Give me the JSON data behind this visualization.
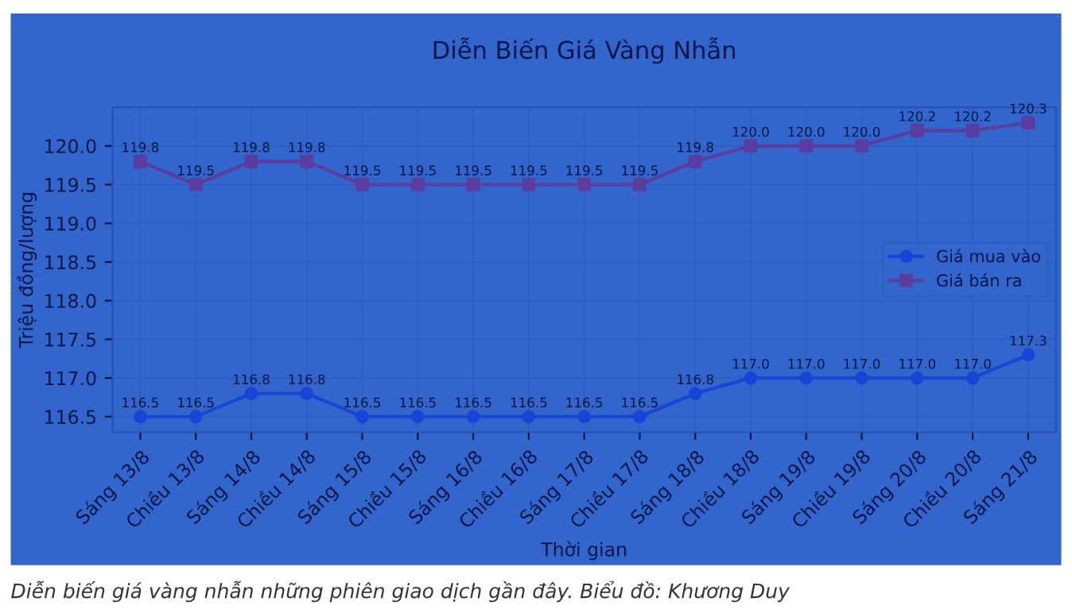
{
  "chart_data": {
    "type": "line",
    "title": "Diễn Biến Giá Vàng Nhẫn",
    "xlabel": "Thời gian",
    "ylabel": "Triệu đồng/lượng",
    "categories": [
      "Sáng 13/8",
      "Chiều 13/8",
      "Sáng 14/8",
      "Chiều 14/8",
      "Sáng 15/8",
      "Chiều 15/8",
      "Sáng 16/8",
      "Chiều 16/8",
      "Sáng 17/8",
      "Chiều 17/8",
      "Sáng 18/8",
      "Chiều 18/8",
      "Sáng 19/8",
      "Chiều 19/8",
      "Sáng 20/8",
      "Chiều 20/8",
      "Sáng 21/8"
    ],
    "series": [
      {
        "name": "Giá mua vào",
        "color": "#1a44d6",
        "marker": "circle",
        "values": [
          116.5,
          116.5,
          116.8,
          116.8,
          116.5,
          116.5,
          116.5,
          116.5,
          116.5,
          116.5,
          116.8,
          117.0,
          117.0,
          117.0,
          117.0,
          117.0,
          117.3
        ],
        "value_labels": [
          "116.5",
          "116.5",
          "116.8",
          "116.8",
          "116.5",
          "116.5",
          "116.5",
          "116.5",
          "116.5",
          "116.5",
          "116.8",
          "117.0",
          "117.0",
          "117.0",
          "117.0",
          "117.0",
          "117.3"
        ]
      },
      {
        "name": "Giá bán ra",
        "color": "#5a3d9e",
        "marker": "square",
        "values": [
          119.8,
          119.5,
          119.8,
          119.8,
          119.5,
          119.5,
          119.5,
          119.5,
          119.5,
          119.5,
          119.8,
          120.0,
          120.0,
          120.0,
          120.2,
          120.2,
          120.3
        ],
        "value_labels": [
          "119.8",
          "119.5",
          "119.8",
          "119.8",
          "119.5",
          "119.5",
          "119.5",
          "119.5",
          "119.5",
          "119.5",
          "119.8",
          "120.0",
          "120.0",
          "120.0",
          "120.2",
          "120.2",
          "120.3"
        ]
      }
    ],
    "ylim": [
      116.3,
      120.5
    ],
    "yticks": [
      116.5,
      {
        "value": 117,
        "label": "117.0"
      },
      117.5,
      {
        "value": 118,
        "label": "118.0"
      },
      118.5,
      {
        "value": 119,
        "label": "119.0"
      },
      119.5,
      {
        "value": 120,
        "label": "120.0"
      }
    ],
    "grid": true,
    "legend": "right",
    "line_style": "solid",
    "annotations": [
      "Diễn biến giá vàng nhẫn những phiên giao dịch gần đây. Biểu đồ: Khương Duy"
    ]
  }
}
